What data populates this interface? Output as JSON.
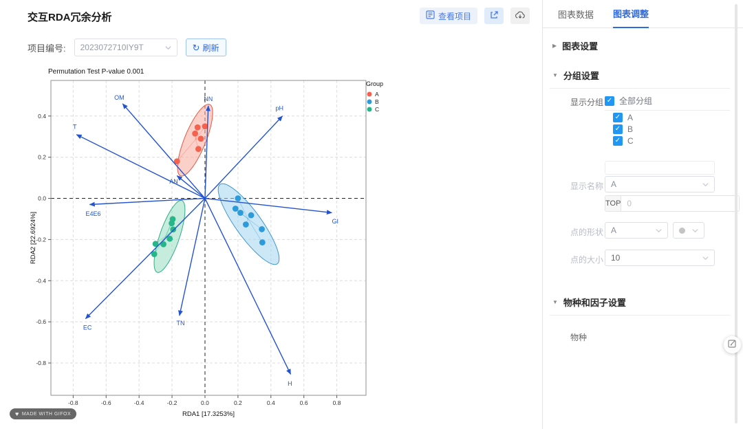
{
  "page": {
    "title": "交互RDA冗余分析"
  },
  "header": {
    "view_project_label": "查看项目",
    "export_icon": "open-in-new-icon",
    "download_icon": "cloud-download-icon"
  },
  "toolbar": {
    "project_label": "项目编号:",
    "project_id": "2023072710IY9T",
    "refresh_label": "刷新",
    "refresh_icon": "↻"
  },
  "badge": {
    "text": "MADE WITH GIFOX",
    "icon": "heart-icon"
  },
  "panel": {
    "tabs": [
      {
        "label": "图表数据"
      },
      {
        "label": "图表调整"
      }
    ],
    "sections": {
      "chart_settings": "图表设置",
      "group_settings": "分组设置",
      "species_factor_settings": "物种和因子设置"
    },
    "group": {
      "show_groups_label": "显示分组",
      "all_groups_label": "全部分组",
      "group_items": [
        "A",
        "B",
        "C"
      ],
      "show_name_label": "显示名称",
      "show_name_value": "A",
      "top_prefix": "TOP",
      "top_value": "0",
      "point_shape_label": "点的形状",
      "point_shape_value": "A",
      "point_size_label": "点的大小",
      "point_size_value": "10"
    },
    "species_label": "物种",
    "check_glyph": "✓"
  },
  "chart_data": {
    "type": "scatter",
    "title": "Permutation Test P-value   0.001",
    "xlabel": "RDA1 [17.3253%]",
    "ylabel": "RDA2 [22.6924%]",
    "xlim": [
      -0.935,
      0.977
    ],
    "ylim": [
      -0.957,
      0.573
    ],
    "xticks": [
      -0.8,
      -0.6,
      -0.4,
      -0.2,
      0,
      0.2,
      0.4,
      0.6,
      0.8
    ],
    "yticks": [
      -0.8,
      -0.6,
      -0.4,
      -0.2,
      0,
      0.2,
      0.4
    ],
    "grid": true,
    "legend_title": "Group",
    "legend_position": "right-top-outside",
    "arrow_color": "#2353cd",
    "groups": [
      {
        "name": "A",
        "color": "#f4614f",
        "fill": "#f6a99c",
        "stroke": "#e05a46",
        "points": [
          [
            -0.045,
            0.345
          ],
          [
            0.0,
            0.35
          ],
          [
            -0.06,
            0.315
          ],
          [
            -0.025,
            0.29
          ],
          [
            -0.04,
            0.24
          ],
          [
            -0.17,
            0.18
          ]
        ],
        "ellipse": {
          "cx": -0.06,
          "cy": 0.283,
          "rx": 0.195,
          "ry": 0.062,
          "angle": 62
        }
      },
      {
        "name": "B",
        "color": "#2d9bd9",
        "fill": "#a2d4ef",
        "stroke": "#3d97d3",
        "points": [
          [
            0.2,
            0.0
          ],
          [
            0.185,
            -0.05
          ],
          [
            0.215,
            -0.07
          ],
          [
            0.28,
            -0.082
          ],
          [
            0.248,
            -0.127
          ],
          [
            0.345,
            -0.15
          ],
          [
            0.348,
            -0.214
          ]
        ],
        "ellipse": {
          "cx": 0.265,
          "cy": -0.125,
          "rx": 0.26,
          "ry": 0.072,
          "angle": -47
        }
      },
      {
        "name": "C",
        "color": "#27b689",
        "fill": "#96dcc0",
        "stroke": "#2fae85",
        "points": [
          [
            -0.196,
            -0.101
          ],
          [
            -0.202,
            -0.121
          ],
          [
            -0.193,
            -0.151
          ],
          [
            -0.214,
            -0.196
          ],
          [
            -0.252,
            -0.223
          ],
          [
            -0.3,
            -0.221
          ],
          [
            -0.308,
            -0.271
          ]
        ],
        "ellipse": {
          "cx": -0.215,
          "cy": -0.185,
          "rx": 0.19,
          "ry": 0.058,
          "angle": 66
        }
      }
    ],
    "arrows": [
      {
        "label": "OM",
        "x": -0.5,
        "y": 0.46,
        "lx": -0.52,
        "ly": 0.49
      },
      {
        "label": "NN",
        "x": 0.02,
        "y": 0.45,
        "lx": 0.02,
        "ly": 0.482
      },
      {
        "label": "pH",
        "x": 0.47,
        "y": 0.4,
        "lx": 0.452,
        "ly": 0.437
      },
      {
        "label": "T",
        "x": -0.78,
        "y": 0.31,
        "lx": -0.79,
        "ly": 0.348
      },
      {
        "label": "AN",
        "x": -0.17,
        "y": 0.11,
        "lx": -0.19,
        "ly": 0.082
      },
      {
        "label": "E4E6",
        "x": -0.7,
        "y": -0.03,
        "lx": -0.678,
        "ly": -0.075
      },
      {
        "label": "GI",
        "x": 0.77,
        "y": -0.07,
        "lx": 0.79,
        "ly": -0.112
      },
      {
        "label": "EC",
        "x": -0.725,
        "y": -0.585,
        "lx": -0.713,
        "ly": -0.628
      },
      {
        "label": "TN",
        "x": -0.155,
        "y": -0.57,
        "lx": -0.148,
        "ly": -0.606
      },
      {
        "label": "H",
        "x": 0.52,
        "y": -0.855,
        "lx": 0.515,
        "ly": -0.9
      }
    ]
  }
}
